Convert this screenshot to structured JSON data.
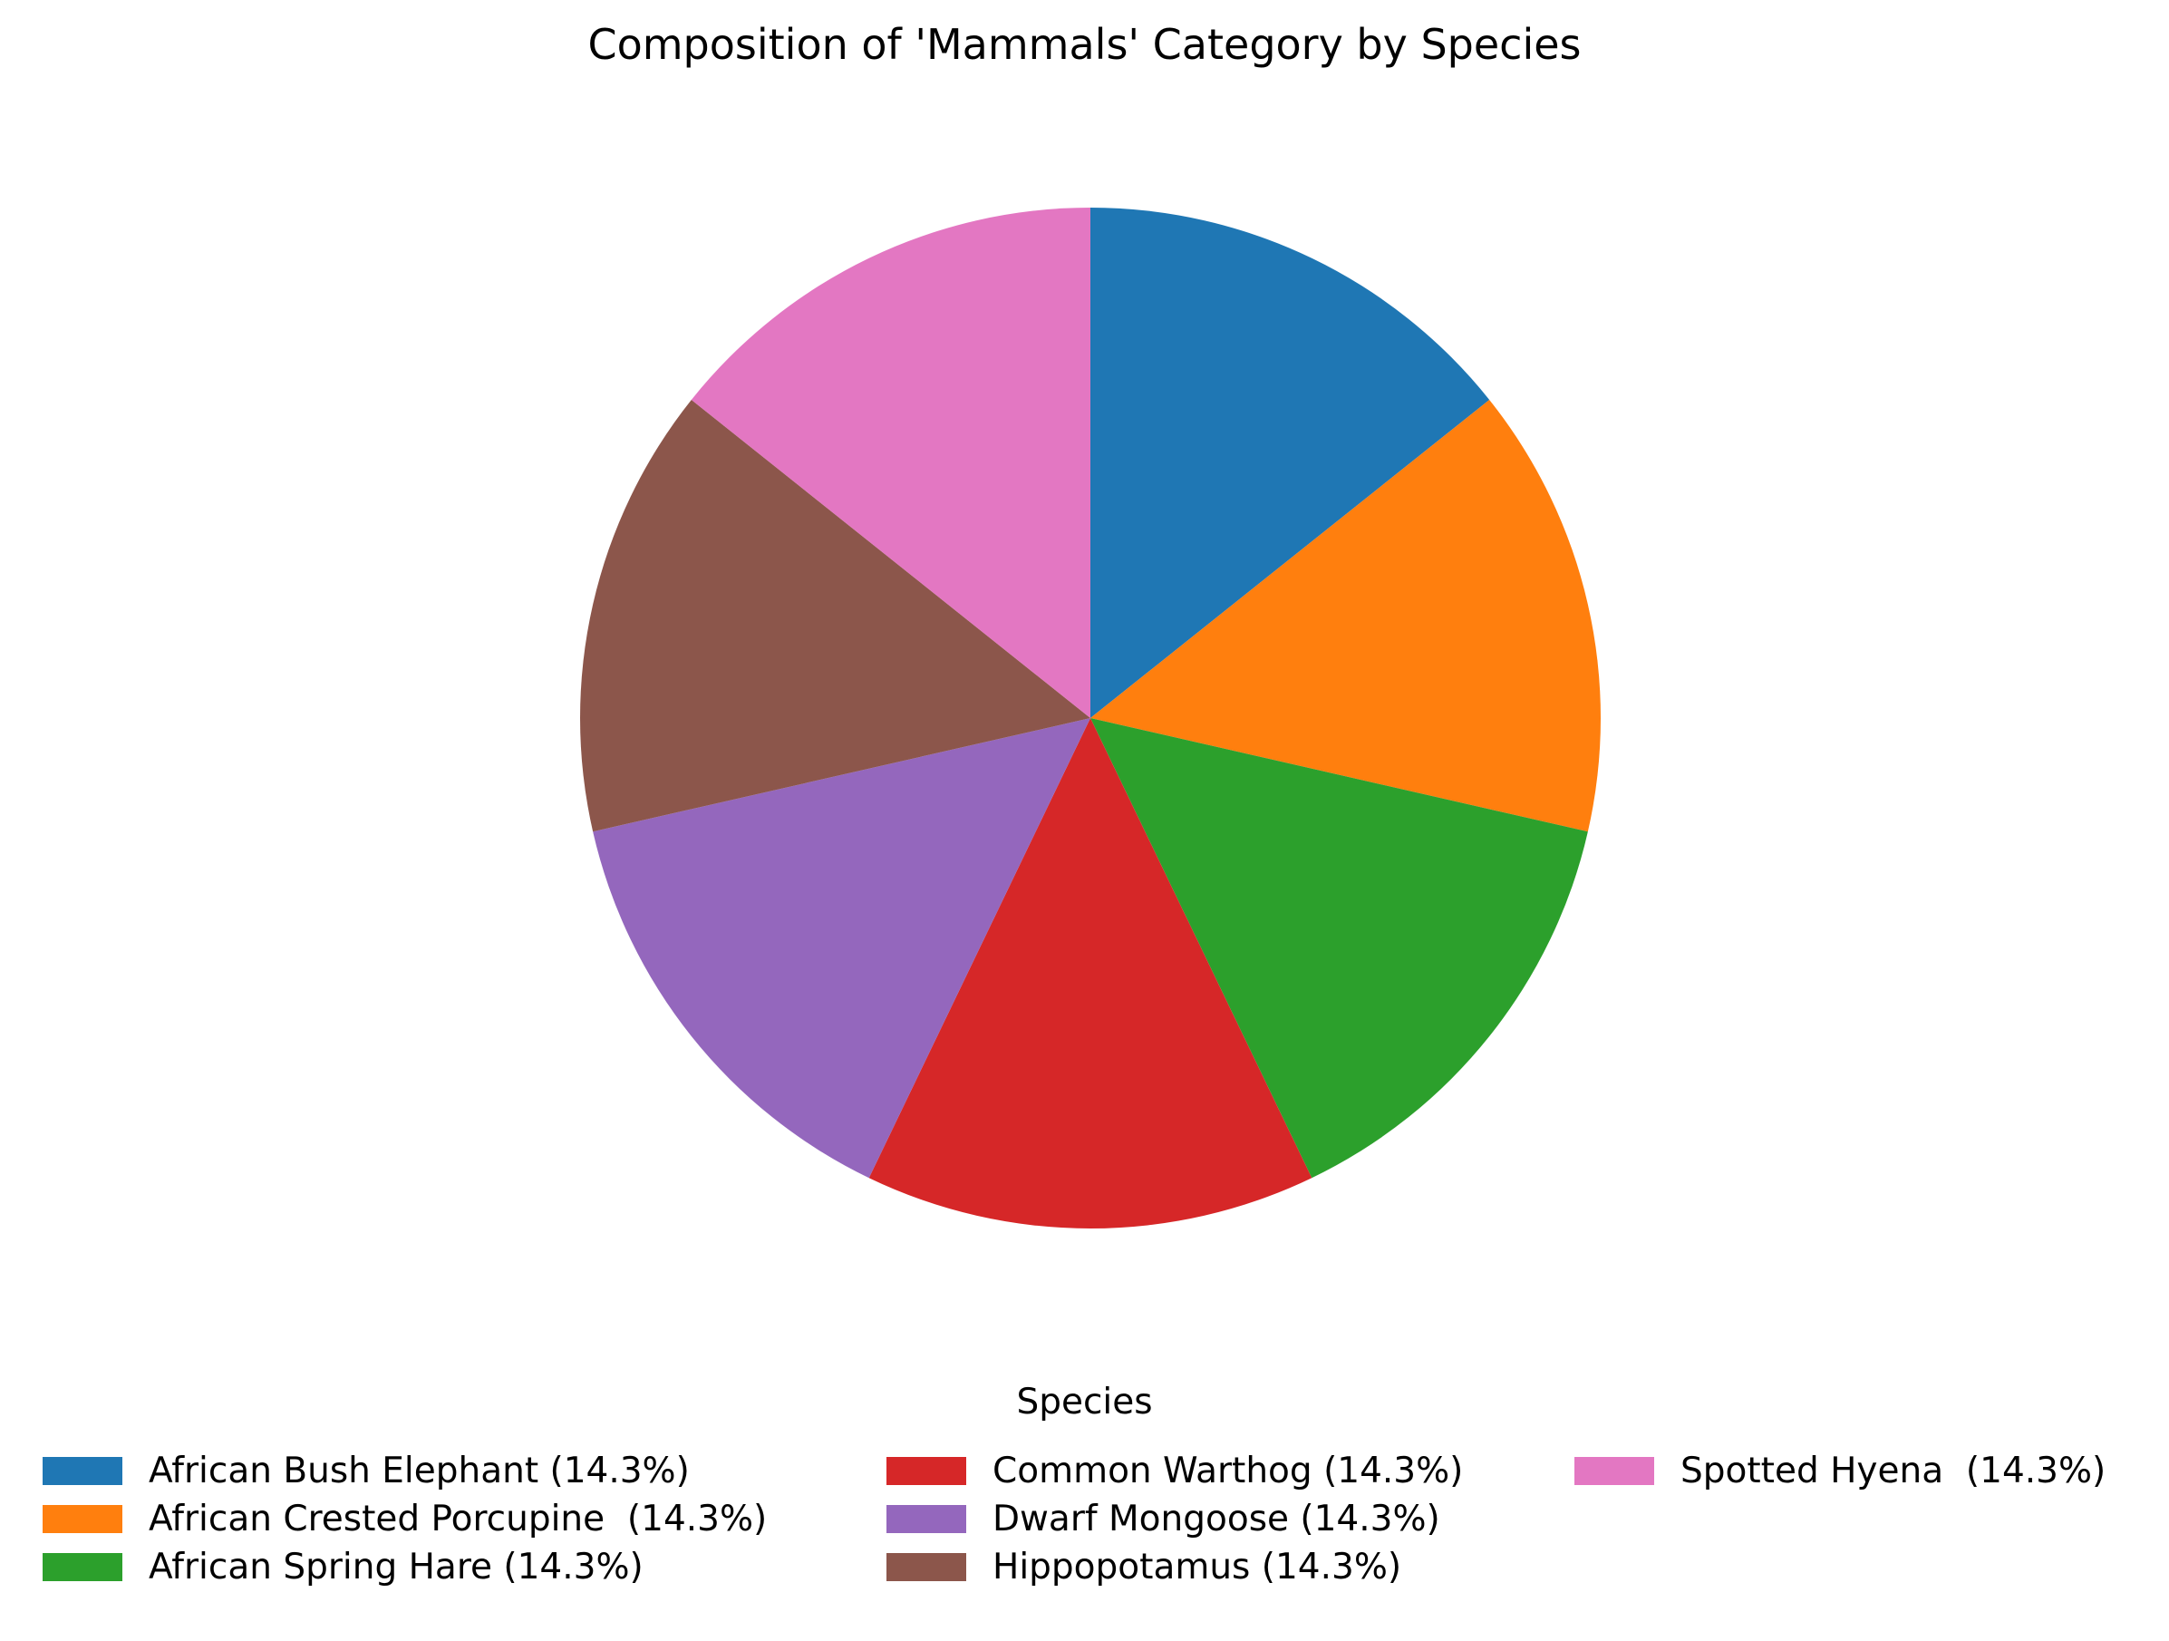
{
  "chart_data": {
    "type": "pie",
    "title": "Composition of 'Mammals' Category by Species",
    "legend": {
      "title": "Species",
      "placement": "bottom-center",
      "columns": 3
    },
    "slices": [
      {
        "label": "African Bush Elephant",
        "value": 14.3,
        "legend_text": "African Bush Elephant (14.3%)",
        "color": "#1f77b4"
      },
      {
        "label": "African Crested Porcupine ",
        "value": 14.3,
        "legend_text": "African Crested Porcupine  (14.3%)",
        "color": "#ff7f0e"
      },
      {
        "label": "African Spring Hare",
        "value": 14.3,
        "legend_text": "African Spring Hare (14.3%)",
        "color": "#2ca02c"
      },
      {
        "label": "Common Warthog",
        "value": 14.3,
        "legend_text": "Common Warthog (14.3%)",
        "color": "#d62728"
      },
      {
        "label": "Dwarf Mongoose",
        "value": 14.3,
        "legend_text": "Dwarf Mongoose (14.3%)",
        "color": "#9467bd"
      },
      {
        "label": "Hippopotamus",
        "value": 14.3,
        "legend_text": "Hippopotamus (14.3%)",
        "color": "#8c564b"
      },
      {
        "label": "Spotted Hyena ",
        "value": 14.3,
        "legend_text": "Spotted Hyena  (14.3%)",
        "color": "#e377c2"
      }
    ],
    "start_angle_deg": 90,
    "direction": "clockwise"
  }
}
